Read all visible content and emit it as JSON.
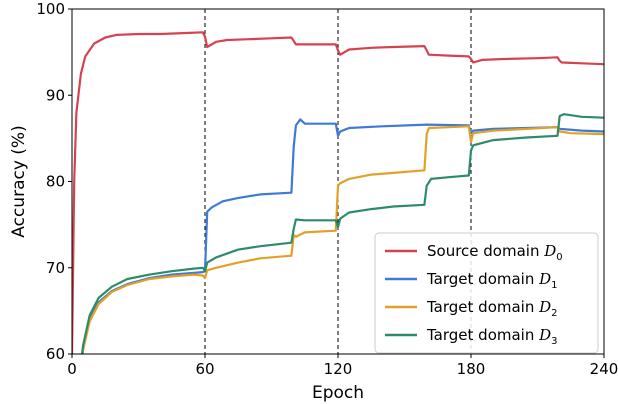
{
  "chart_data": {
    "type": "line",
    "xlabel": "Epoch",
    "ylabel": "Accuracy (%)",
    "xlim": [
      0,
      240
    ],
    "ylim": [
      60,
      100
    ],
    "xticks": [
      0,
      60,
      120,
      180,
      240
    ],
    "yticks": [
      60,
      70,
      80,
      90,
      100
    ],
    "vlines": [
      60,
      120,
      180,
      240
    ],
    "legend": {
      "position": "lower right"
    },
    "grid": false,
    "series": [
      {
        "name": "Source domain D0",
        "label_main": "Source domain ",
        "label_sym": "D",
        "label_sub": "0",
        "color": "#d6424f",
        "points": [
          [
            0,
            60
          ],
          [
            1,
            80
          ],
          [
            2,
            88
          ],
          [
            4,
            92.5
          ],
          [
            6,
            94.5
          ],
          [
            10,
            96
          ],
          [
            15,
            96.7
          ],
          [
            20,
            97
          ],
          [
            30,
            97.1
          ],
          [
            40,
            97.1
          ],
          [
            50,
            97.2
          ],
          [
            59,
            97.3
          ],
          [
            60,
            96.8
          ],
          [
            61,
            95.6
          ],
          [
            65,
            96.2
          ],
          [
            70,
            96.4
          ],
          [
            80,
            96.5
          ],
          [
            90,
            96.6
          ],
          [
            99,
            96.7
          ],
          [
            100,
            96.3
          ],
          [
            101,
            95.9
          ],
          [
            110,
            95.9
          ],
          [
            119,
            95.9
          ],
          [
            120,
            95.2
          ],
          [
            121,
            94.7
          ],
          [
            125,
            95.3
          ],
          [
            135,
            95.5
          ],
          [
            145,
            95.6
          ],
          [
            159,
            95.7
          ],
          [
            160,
            95.2
          ],
          [
            161,
            94.7
          ],
          [
            170,
            94.6
          ],
          [
            179,
            94.5
          ],
          [
            180,
            94.2
          ],
          [
            181,
            93.8
          ],
          [
            185,
            94.1
          ],
          [
            195,
            94.2
          ],
          [
            210,
            94.3
          ],
          [
            219,
            94.4
          ],
          [
            220,
            94.0
          ],
          [
            221,
            93.8
          ],
          [
            230,
            93.7
          ],
          [
            240,
            93.6
          ]
        ]
      },
      {
        "name": "Target domain D1",
        "label_main": " Target domain ",
        "label_sym": "D",
        "label_sub": "1",
        "color": "#3f7ad6",
        "points": [
          [
            0,
            57
          ],
          [
            3,
            57
          ],
          [
            5,
            60.5
          ],
          [
            8,
            64
          ],
          [
            12,
            66
          ],
          [
            18,
            67.3
          ],
          [
            25,
            68.1
          ],
          [
            35,
            68.8
          ],
          [
            45,
            69.2
          ],
          [
            55,
            69.4
          ],
          [
            59,
            69.5
          ],
          [
            60,
            69.6
          ],
          [
            61,
            76.5
          ],
          [
            63,
            77
          ],
          [
            68,
            77.7
          ],
          [
            75,
            78.1
          ],
          [
            85,
            78.5
          ],
          [
            99,
            78.7
          ],
          [
            100,
            84
          ],
          [
            101,
            86.5
          ],
          [
            103,
            87.2
          ],
          [
            105,
            86.7
          ],
          [
            119,
            86.7
          ],
          [
            120,
            85.3
          ],
          [
            121,
            85.8
          ],
          [
            125,
            86.2
          ],
          [
            140,
            86.4
          ],
          [
            160,
            86.6
          ],
          [
            179,
            86.5
          ],
          [
            180,
            85.6
          ],
          [
            181,
            85.9
          ],
          [
            190,
            86.1
          ],
          [
            205,
            86.2
          ],
          [
            219,
            86.3
          ],
          [
            220,
            86.1
          ],
          [
            230,
            85.9
          ],
          [
            240,
            85.8
          ]
        ]
      },
      {
        "name": "Target domain D2",
        "label_main": "  Target domain ",
        "label_sym": "D",
        "label_sub": "2",
        "color": "#e1a129",
        "points": [
          [
            0,
            57
          ],
          [
            3,
            57
          ],
          [
            5,
            60.5
          ],
          [
            8,
            63.8
          ],
          [
            12,
            65.8
          ],
          [
            18,
            67.2
          ],
          [
            25,
            68.0
          ],
          [
            35,
            68.7
          ],
          [
            45,
            69.0
          ],
          [
            55,
            69.2
          ],
          [
            59,
            69.1
          ],
          [
            60,
            68.8
          ],
          [
            61,
            69.7
          ],
          [
            65,
            70
          ],
          [
            75,
            70.6
          ],
          [
            85,
            71.1
          ],
          [
            99,
            71.4
          ],
          [
            100,
            73.8
          ],
          [
            101,
            73.6
          ],
          [
            105,
            74.1
          ],
          [
            119,
            74.3
          ],
          [
            120,
            79.5
          ],
          [
            121,
            79.8
          ],
          [
            125,
            80.3
          ],
          [
            135,
            80.8
          ],
          [
            145,
            81.0
          ],
          [
            159,
            81.3
          ],
          [
            160,
            85.5
          ],
          [
            161,
            86.2
          ],
          [
            170,
            86.3
          ],
          [
            179,
            86.4
          ],
          [
            180,
            84.6
          ],
          [
            181,
            85.6
          ],
          [
            190,
            85.9
          ],
          [
            205,
            86.1
          ],
          [
            219,
            86.3
          ],
          [
            220,
            85.8
          ],
          [
            225,
            85.6
          ],
          [
            240,
            85.5
          ]
        ]
      },
      {
        "name": "Target domain D3",
        "label_main": "  Target domain ",
        "label_sym": "D",
        "label_sub": "3",
        "color": "#2e8b68",
        "points": [
          [
            0,
            57
          ],
          [
            3,
            57
          ],
          [
            5,
            61
          ],
          [
            8,
            64.5
          ],
          [
            12,
            66.5
          ],
          [
            18,
            67.8
          ],
          [
            25,
            68.7
          ],
          [
            35,
            69.2
          ],
          [
            45,
            69.6
          ],
          [
            55,
            69.9
          ],
          [
            59,
            70
          ],
          [
            60,
            69.6
          ],
          [
            61,
            70.6
          ],
          [
            65,
            71.2
          ],
          [
            75,
            72.1
          ],
          [
            85,
            72.5
          ],
          [
            99,
            72.9
          ],
          [
            100,
            74.5
          ],
          [
            101,
            75.6
          ],
          [
            105,
            75.5
          ],
          [
            119,
            75.5
          ],
          [
            120,
            74.7
          ],
          [
            121,
            75.7
          ],
          [
            125,
            76.4
          ],
          [
            135,
            76.8
          ],
          [
            145,
            77.1
          ],
          [
            159,
            77.3
          ],
          [
            160,
            79.5
          ],
          [
            162,
            80.3
          ],
          [
            170,
            80.5
          ],
          [
            179,
            80.7
          ],
          [
            180,
            83.6
          ],
          [
            181,
            84.2
          ],
          [
            190,
            84.8
          ],
          [
            205,
            85.1
          ],
          [
            219,
            85.3
          ],
          [
            220,
            87.6
          ],
          [
            222,
            87.8
          ],
          [
            230,
            87.5
          ],
          [
            240,
            87.4
          ]
        ]
      }
    ]
  }
}
